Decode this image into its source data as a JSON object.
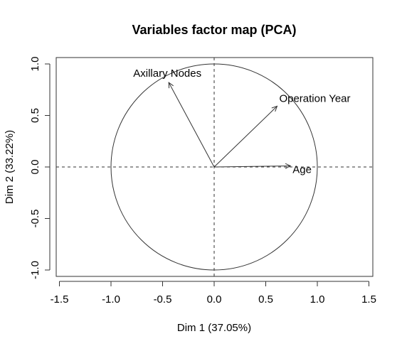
{
  "chart_data": {
    "type": "scatter",
    "title": "Variables factor map (PCA)",
    "xlabel": "Dim 1 (37.05%)",
    "ylabel": "Dim 2 (33.22%)",
    "xlim": [
      -1.5,
      1.5
    ],
    "ylim": [
      -1.0,
      1.0
    ],
    "x_ticks": [
      -1.5,
      -1.0,
      -0.5,
      0.0,
      0.5,
      1.0,
      1.5
    ],
    "x_tick_labels": [
      "-1.5",
      "-1.0",
      "-0.5",
      "0.0",
      "0.5",
      "1.0",
      "1.5"
    ],
    "y_ticks": [
      -1.0,
      -0.5,
      0.0,
      0.5,
      1.0
    ],
    "y_tick_labels": [
      "-1.0",
      "-0.5",
      "0.0",
      "0.5",
      "1.0"
    ],
    "grid": false,
    "unit_circle": true,
    "reference_lines": [
      0.0,
      0.0
    ],
    "variables": [
      {
        "name": "Age",
        "x": 0.74,
        "y": 0.01
      },
      {
        "name": "Operation Year",
        "x": 0.61,
        "y": 0.59
      },
      {
        "name": "Axillary Nodes",
        "x": -0.44,
        "y": 0.82
      }
    ],
    "colors": {
      "line": "#333333",
      "background": "#ffffff"
    }
  }
}
